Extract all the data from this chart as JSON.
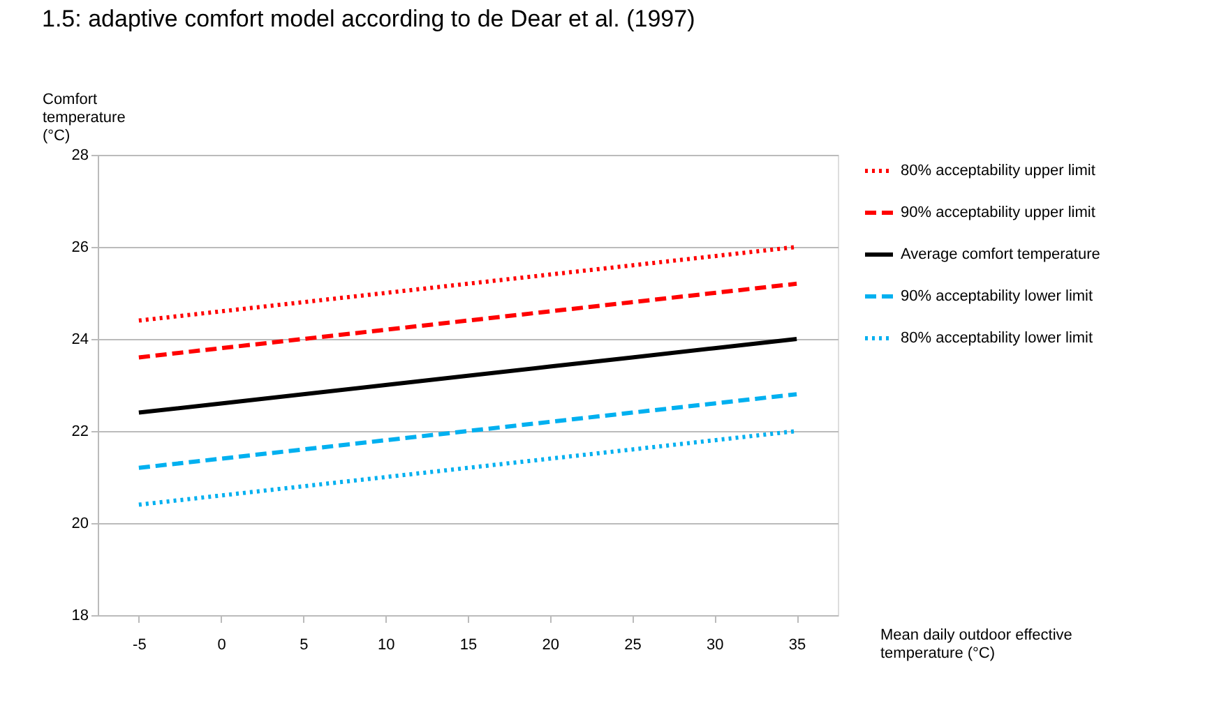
{
  "chart_data": {
    "type": "line",
    "title": "1.5: adaptive comfort model according to de Dear et al. (1997)",
    "xlabel": "Mean daily outdoor effective temperature (°C)",
    "ylabel": "Comfort temperature (°C)",
    "categories": [
      "-5",
      "0",
      "5",
      "10",
      "15",
      "20",
      "25",
      "30",
      "35"
    ],
    "series": [
      {
        "name": "80% acceptability upper limit",
        "color": "#ff0000",
        "line_style": "dotted",
        "values": [
          24.4,
          24.6,
          24.8,
          25.0,
          25.2,
          25.4,
          25.6,
          25.8,
          26.0
        ]
      },
      {
        "name": "90% acceptability upper limit",
        "color": "#ff0000",
        "line_style": "dashed",
        "values": [
          23.6,
          23.8,
          24.0,
          24.2,
          24.4,
          24.6,
          24.8,
          25.0,
          25.2
        ]
      },
      {
        "name": "Average comfort temperature",
        "color": "#000000",
        "line_style": "solid",
        "values": [
          22.4,
          22.6,
          22.8,
          23.0,
          23.2,
          23.4,
          23.6,
          23.8,
          24.0
        ]
      },
      {
        "name": "90% acceptability lower limit",
        "color": "#00b0f0",
        "line_style": "dashed",
        "values": [
          21.2,
          21.4,
          21.6,
          21.8,
          22.0,
          22.2,
          22.4,
          22.6,
          22.8
        ]
      },
      {
        "name": "80% acceptability lower limit",
        "color": "#00b0f0",
        "line_style": "dotted",
        "values": [
          20.4,
          20.6,
          20.8,
          21.0,
          21.2,
          21.4,
          21.6,
          21.8,
          22.0
        ]
      }
    ],
    "ylim": [
      18,
      28
    ],
    "yticks": [
      18,
      20,
      22,
      24,
      26,
      28
    ],
    "grid": "y",
    "legend": "right",
    "marker": "none"
  }
}
